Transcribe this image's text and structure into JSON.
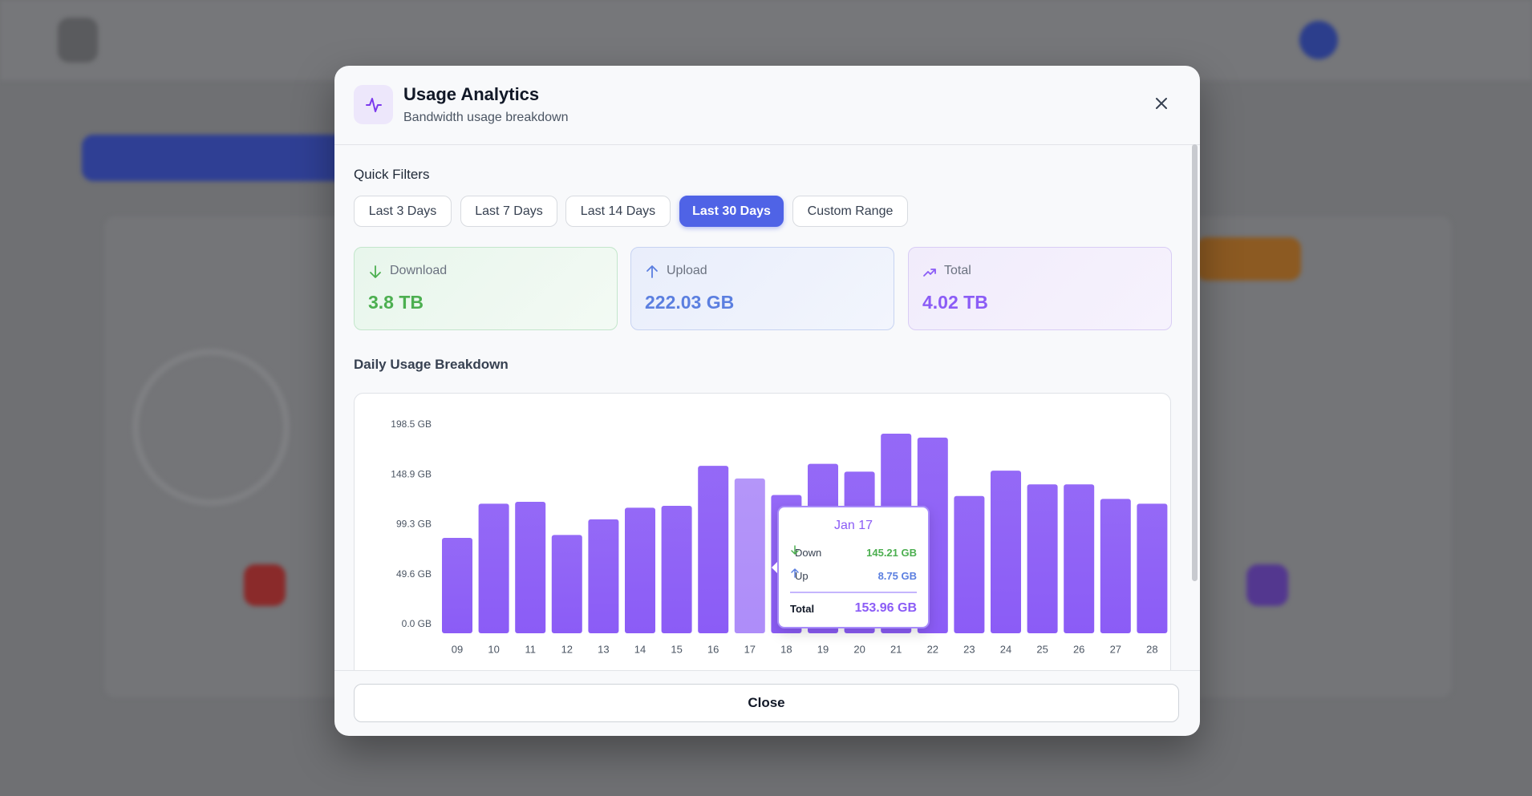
{
  "modal": {
    "title": "Usage Analytics",
    "subtitle": "Bandwidth usage breakdown",
    "quick_filters_label": "Quick Filters",
    "filters": [
      "Last 3 Days",
      "Last 7 Days",
      "Last 14 Days",
      "Last 30 Days",
      "Custom Range"
    ],
    "cards": [
      {
        "label": "Download",
        "value": "3.8 TB"
      },
      {
        "label": "Upload",
        "value": "222.03 GB"
      },
      {
        "label": "Total",
        "value": "4.02 TB"
      }
    ],
    "section_title": "Daily Usage Breakdown",
    "close_button": "Close"
  },
  "chart_data": {
    "type": "bar",
    "categories": [
      "09",
      "10",
      "11",
      "12",
      "13",
      "14",
      "15",
      "16",
      "17",
      "18",
      "19",
      "20",
      "21",
      "22",
      "23",
      "24",
      "25",
      "26",
      "27",
      "28"
    ],
    "values": [
      94.9,
      128.8,
      130.7,
      97.8,
      113.3,
      124.9,
      126.8,
      166.5,
      153.96,
      137.5,
      168.5,
      160.7,
      198.5,
      194.6,
      136.5,
      161.7,
      148.1,
      148.1,
      133.6,
      128.8
    ],
    "color": "#8b5cf6",
    "ylim": [
      0,
      198.5
    ],
    "yticks": [
      {
        "value": 0,
        "label": "0.0 GB"
      },
      {
        "value": 49.6,
        "label": "49.6 GB"
      },
      {
        "value": 99.3,
        "label": "99.3 GB"
      },
      {
        "value": 148.9,
        "label": "148.9 GB"
      },
      {
        "value": 198.5,
        "label": "198.5 GB"
      }
    ],
    "tooltip": {
      "title": "Jan 17",
      "rows": [
        {
          "label": "Down",
          "value": "145.21 GB"
        },
        {
          "label": "Up",
          "value": "8.75 GB"
        }
      ],
      "total_label": "Total",
      "total_value": "153.96 GB"
    }
  }
}
